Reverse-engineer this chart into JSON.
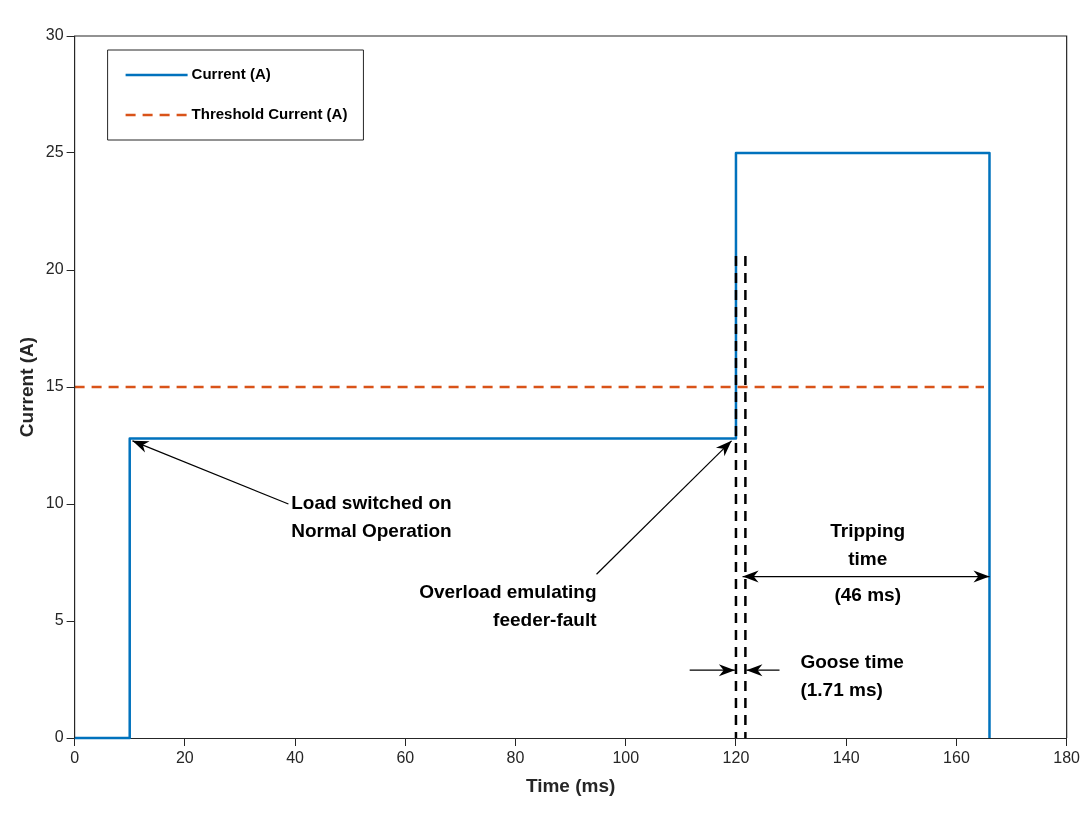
{
  "chart_data": {
    "type": "line",
    "xlabel": "Time (ms)",
    "ylabel": "Current (A)",
    "xlim": [
      0,
      180
    ],
    "xticks": [
      0,
      20,
      40,
      60,
      80,
      100,
      120,
      140,
      160,
      180
    ],
    "ylim": [
      0,
      30
    ],
    "yticks": [
      0,
      5,
      10,
      15,
      20,
      25,
      30
    ],
    "grid": false,
    "legend": "top left",
    "marker": "none",
    "series": [
      {
        "name": "Current (A)",
        "type": "step",
        "color": "#0072bd",
        "line_style": "solid",
        "x": [
          0,
          10,
          120,
          166
        ],
        "values": [
          0,
          12.8,
          25,
          0
        ]
      },
      {
        "name": "Threshold Current (A)",
        "color": "#d95319",
        "line_style": "dashed",
        "x": [
          0,
          165
        ],
        "values": [
          15,
          15
        ]
      },
      {
        "color": "#000000",
        "line_style": "dashed",
        "x": [
          120,
          120
        ],
        "values": [
          20.6,
          0
        ]
      },
      {
        "color": "#000000",
        "line_style": "dashed",
        "x": [
          121.71,
          121.71
        ],
        "values": [
          20.6,
          0
        ]
      }
    ],
    "annotations": [
      {
        "text": "Load switched on\nNormal Operation",
        "x": 10,
        "y": 12.8
      },
      {
        "text": "Overload emulating\nfeeder-fault",
        "x": 120,
        "y": 12.8
      },
      "Tripping\ntime\n(46 ms)",
      "Goose time\n(1.71 ms)"
    ]
  }
}
